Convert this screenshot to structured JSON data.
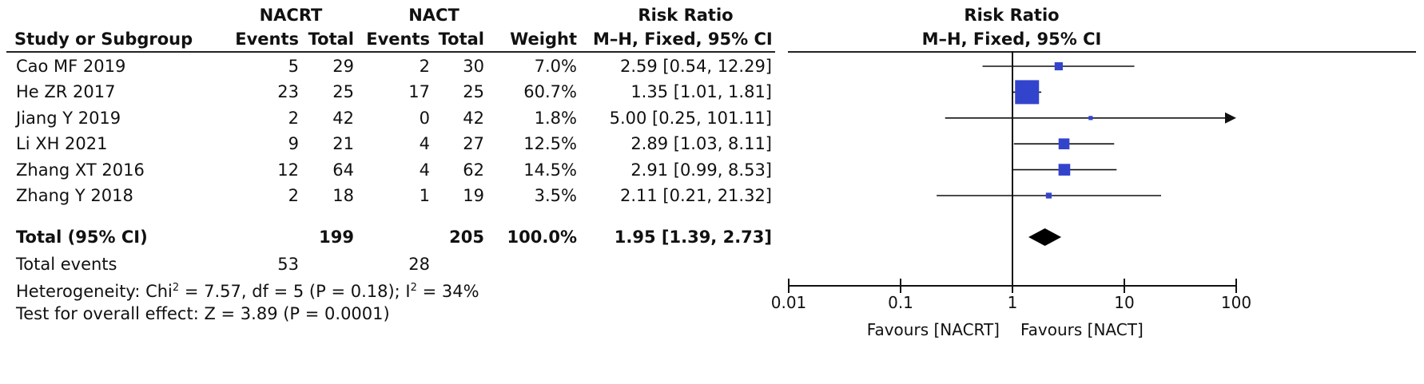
{
  "header": {
    "group1": "NACRT",
    "group2": "NACT",
    "rr_title": "Risk Ratio",
    "plot_title": "Risk Ratio",
    "study_col": "Study or Subgroup",
    "events1": "Events",
    "total1": "Total",
    "events2": "Events",
    "total2": "Total",
    "weight": "Weight",
    "method": "M–H, Fixed, 95% CI",
    "plot_method": "M–H, Fixed, 95% CI"
  },
  "studies": [
    {
      "name": "Cao MF 2019",
      "e1": "5",
      "t1": "29",
      "e2": "2",
      "t2": "30",
      "weight": "7.0%",
      "ci_text": "2.59 [0.54, 12.29]"
    },
    {
      "name": "He ZR 2017",
      "e1": "23",
      "t1": "25",
      "e2": "17",
      "t2": "25",
      "weight": "60.7%",
      "ci_text": "1.35 [1.01, 1.81]"
    },
    {
      "name": "Jiang Y 2019",
      "e1": "2",
      "t1": "42",
      "e2": "0",
      "t2": "42",
      "weight": "1.8%",
      "ci_text": "5.00 [0.25, 101.11]"
    },
    {
      "name": "Li XH 2021",
      "e1": "9",
      "t1": "21",
      "e2": "4",
      "t2": "27",
      "weight": "12.5%",
      "ci_text": "2.89 [1.03, 8.11]"
    },
    {
      "name": "Zhang XT 2016",
      "e1": "12",
      "t1": "64",
      "e2": "4",
      "t2": "62",
      "weight": "14.5%",
      "ci_text": "2.91 [0.99, 8.53]"
    },
    {
      "name": "Zhang Y 2018",
      "e1": "2",
      "t1": "18",
      "e2": "1",
      "t2": "19",
      "weight": "3.5%",
      "ci_text": "2.11 [0.21, 21.32]"
    }
  ],
  "total": {
    "label": "Total (95% CI)",
    "t1": "199",
    "t2": "205",
    "weight": "100.0%",
    "ci_text": "1.95 [1.39, 2.73]"
  },
  "events": {
    "label": "Total events",
    "e1": "53",
    "e2": "28"
  },
  "heterogeneity": {
    "prefix": "Heterogeneity: Chi",
    "sup1": "2",
    "mid": " = 7.57, df = 5 (P = 0.18); I",
    "sup2": "2",
    "suffix": " = 34%"
  },
  "overall_effect": "Test for overall effect: Z = 3.89 (P = 0.0001)",
  "axis": {
    "ticks": [
      "0.01",
      "0.1",
      "1",
      "10",
      "100"
    ],
    "favours_left": "Favours [NACRT]",
    "favours_right": "Favours [NACT]"
  },
  "colors": {
    "marker": "#3344cc",
    "diamond": "#000000",
    "line": "#111111"
  },
  "chart_data": {
    "type": "forest",
    "scale": "log",
    "xlim": [
      0.01,
      100
    ],
    "ticks": [
      0.01,
      0.1,
      1,
      10,
      100
    ],
    "reference_line": 1,
    "studies": [
      {
        "name": "Cao MF 2019",
        "rr": 2.59,
        "lo": 0.54,
        "hi": 12.29,
        "weight": 7.0
      },
      {
        "name": "He ZR 2017",
        "rr": 1.35,
        "lo": 1.01,
        "hi": 1.81,
        "weight": 60.7
      },
      {
        "name": "Jiang Y 2019",
        "rr": 5.0,
        "lo": 0.25,
        "hi": 101.11,
        "weight": 1.8
      },
      {
        "name": "Li XH 2021",
        "rr": 2.89,
        "lo": 1.03,
        "hi": 8.11,
        "weight": 12.5
      },
      {
        "name": "Zhang XT 2016",
        "rr": 2.91,
        "lo": 0.99,
        "hi": 8.53,
        "weight": 14.5
      },
      {
        "name": "Zhang Y 2018",
        "rr": 2.11,
        "lo": 0.21,
        "hi": 21.32,
        "weight": 3.5
      }
    ],
    "pooled": {
      "rr": 1.95,
      "lo": 1.39,
      "hi": 2.73
    }
  }
}
